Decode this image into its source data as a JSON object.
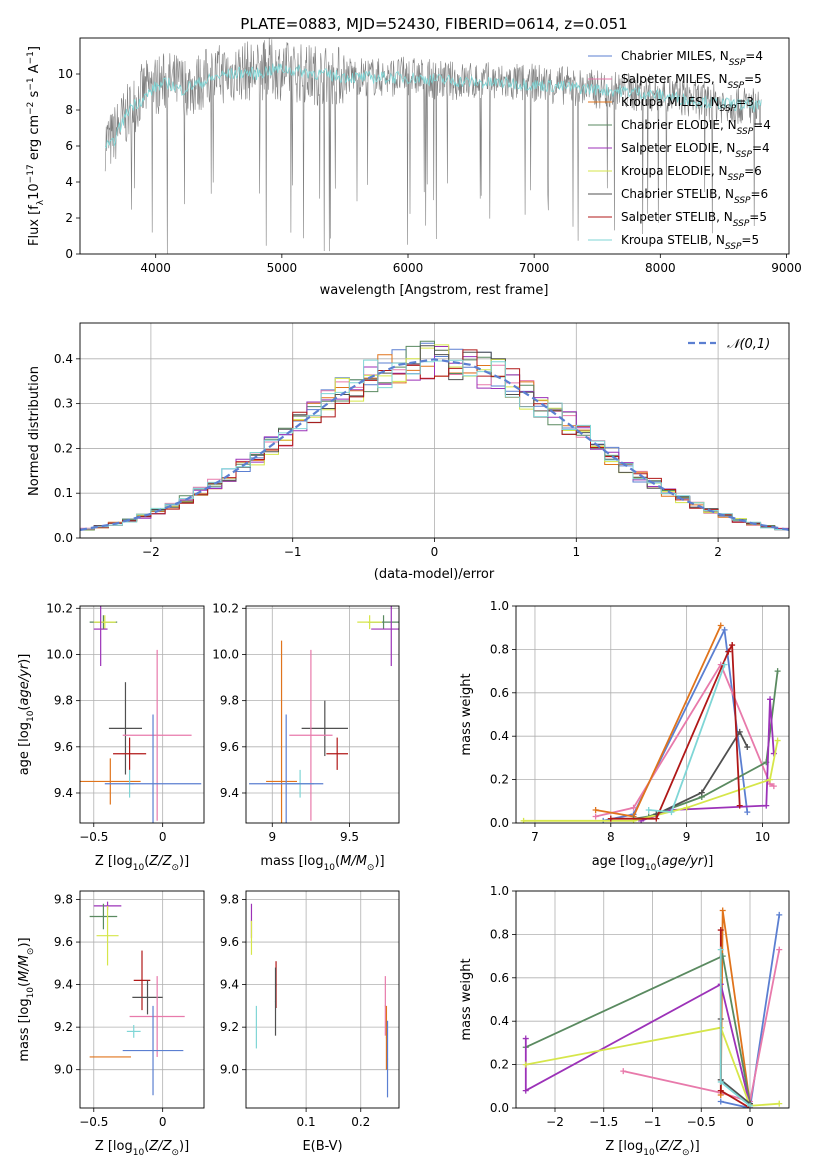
{
  "chart_data": [
    {
      "type": "line",
      "title": "PLATE=0883, MJD=52430, FIBERID=0614, z=0.051",
      "xlabel": "wavelength [Angstrom, rest frame]",
      "ylabel": "Flux [f_λ 10^-17 erg cm^-2 s^-1 A^-1]",
      "xlim": [
        3400,
        9020
      ],
      "ylim": [
        0,
        12
      ],
      "xticks": [
        4000,
        5000,
        6000,
        7000,
        8000,
        9000
      ],
      "yticks": [
        0,
        2,
        4,
        6,
        8,
        10
      ],
      "legend_position": "right",
      "legend": [
        {
          "label": "Chabrier MILES, N_SSP=4",
          "color": "#5b7fd1"
        },
        {
          "label": "Salpeter MILES, N_SSP=5",
          "color": "#e87aab"
        },
        {
          "label": "Kroupa MILES, N_SSP=3",
          "color": "#e0741c"
        },
        {
          "label": "Chabrier ELODIE, N_SSP=4",
          "color": "#5a8a60"
        },
        {
          "label": "Salpeter ELODIE, N_SSP=4",
          "color": "#9c32b8"
        },
        {
          "label": "Kroupa ELODIE, N_SSP=6",
          "color": "#d6e64a"
        },
        {
          "label": "Chabrier STELIB, N_SSP=6",
          "color": "#505050"
        },
        {
          "label": "Salpeter STELIB, N_SSP=5",
          "color": "#b01818"
        },
        {
          "label": "Kroupa STELIB, N_SSP=5",
          "color": "#7fd6d6"
        }
      ],
      "series": [
        {
          "name": "data",
          "color": "#808080",
          "x": [
            3650,
            3700,
            3800,
            3900,
            4000,
            4100,
            4200,
            4300,
            4400,
            4500,
            4600,
            4700,
            4800,
            4900,
            5000,
            5200,
            5400,
            5600,
            5800,
            6000,
            6200,
            6400,
            6600,
            6800,
            7000,
            7200,
            7400,
            7600,
            7800,
            8000,
            8200,
            8400,
            8600,
            8800
          ],
          "y": [
            6.3,
            7.0,
            8.0,
            9.0,
            9.4,
            9.6,
            9.4,
            9.3,
            9.8,
            10.0,
            10.0,
            10.2,
            10.1,
            10.3,
            10.2,
            10.0,
            9.9,
            9.9,
            9.8,
            9.9,
            9.7,
            9.6,
            9.6,
            9.5,
            9.5,
            9.4,
            9.2,
            9.1,
            9.0,
            8.9,
            8.7,
            8.4,
            8.3,
            8.2
          ]
        },
        {
          "name": "model",
          "color": "#7fd6d6",
          "x": [
            3650,
            3700,
            3800,
            3900,
            4000,
            4100,
            4200,
            4300,
            4400,
            4500,
            4600,
            4700,
            4800,
            4900,
            5000,
            5200,
            5400,
            5600,
            5800,
            6000,
            6200,
            6400,
            6600,
            6800,
            7000,
            7200,
            7400,
            7600,
            7800,
            8000,
            8200,
            8400,
            8600,
            8800
          ],
          "y": [
            6.0,
            6.8,
            8.2,
            8.6,
            9.3,
            9.5,
            9.1,
            9.4,
            9.6,
            9.9,
            10.0,
            10.1,
            10.0,
            10.2,
            10.3,
            10.1,
            9.9,
            9.8,
            9.8,
            9.8,
            9.7,
            9.6,
            9.5,
            9.5,
            9.4,
            9.3,
            9.2,
            9.1,
            9.0,
            8.8,
            8.6,
            8.4,
            8.3,
            8.2
          ]
        }
      ]
    },
    {
      "type": "line",
      "xlabel": "(data-model)/error",
      "ylabel": "Normed distribution",
      "xlim": [
        -2.5,
        2.5
      ],
      "ylim": [
        0,
        0.48
      ],
      "xticks": [
        -2,
        -1,
        0,
        1,
        2
      ],
      "yticks": [
        0.0,
        0.1,
        0.2,
        0.3,
        0.4
      ],
      "legend_position": "top-right",
      "legend": [
        {
          "label": "𝒩(0,1)",
          "color": "#5b7fd1"
        }
      ],
      "series": [
        {
          "name": "𝒩(0,1)",
          "color": "#5b7fd1",
          "x": [
            -2.5,
            -2.25,
            -2.0,
            -1.75,
            -1.5,
            -1.25,
            -1.0,
            -0.75,
            -0.5,
            -0.25,
            0.0,
            0.25,
            0.5,
            0.75,
            1.0,
            1.25,
            1.5,
            1.75,
            2.0,
            2.25,
            2.5
          ],
          "y": [
            0.018,
            0.032,
            0.054,
            0.086,
            0.13,
            0.183,
            0.242,
            0.301,
            0.352,
            0.387,
            0.399,
            0.387,
            0.352,
            0.301,
            0.242,
            0.183,
            0.13,
            0.086,
            0.054,
            0.032,
            0.018
          ]
        }
      ]
    },
    {
      "type": "scatter",
      "xlabel": "Z [log10(Z/Z_⊙)]",
      "ylabel": "age [log10(age/yr)]",
      "xlim": [
        -0.6,
        0.3
      ],
      "ylim": [
        9.27,
        10.21
      ],
      "xticks": [
        -0.5,
        0.0
      ],
      "yticks": [
        9.4,
        9.6,
        9.8,
        10.0,
        10.2
      ],
      "points": [
        {
          "x": -0.43,
          "y": 10.14,
          "color": "#5a8a60"
        },
        {
          "x": -0.42,
          "y": 10.14,
          "color": "#d6e64a"
        },
        {
          "x": -0.45,
          "y": 10.11,
          "color": "#9c32b8"
        },
        {
          "x": -0.27,
          "y": 9.68,
          "color": "#505050"
        },
        {
          "x": -0.04,
          "y": 9.65,
          "color": "#e87aab"
        },
        {
          "x": -0.24,
          "y": 9.57,
          "color": "#b01818"
        },
        {
          "x": -0.38,
          "y": 9.45,
          "color": "#e0741c"
        },
        {
          "x": -0.24,
          "y": 9.44,
          "color": "#7fd6d6"
        },
        {
          "x": -0.07,
          "y": 9.44,
          "color": "#5b7fd1"
        }
      ]
    },
    {
      "type": "scatter",
      "xlabel": "mass [log10(M/M_⊙)]",
      "xlim": [
        8.83,
        9.82
      ],
      "ylim": [
        9.27,
        10.21
      ],
      "xticks": [
        9.0,
        9.5
      ],
      "yticks": [
        9.4,
        9.6,
        9.8,
        10.0,
        10.2
      ],
      "points": [
        {
          "x": 9.72,
          "y": 10.14,
          "color": "#5a8a60"
        },
        {
          "x": 9.63,
          "y": 10.14,
          "color": "#d6e64a"
        },
        {
          "x": 9.77,
          "y": 10.11,
          "color": "#9c32b8"
        },
        {
          "x": 9.34,
          "y": 9.68,
          "color": "#505050"
        },
        {
          "x": 9.25,
          "y": 9.65,
          "color": "#e87aab"
        },
        {
          "x": 9.42,
          "y": 9.57,
          "color": "#b01818"
        },
        {
          "x": 9.06,
          "y": 9.45,
          "color": "#e0741c"
        },
        {
          "x": 9.18,
          "y": 9.44,
          "color": "#7fd6d6"
        },
        {
          "x": 9.09,
          "y": 9.44,
          "color": "#5b7fd1"
        }
      ]
    },
    {
      "type": "line",
      "xlabel": "age [log10(age/yr)]",
      "ylabel": "mass weight",
      "xlim": [
        6.75,
        10.35
      ],
      "ylim": [
        0,
        1
      ],
      "xticks": [
        7,
        8,
        9,
        10
      ],
      "yticks": [
        0.0,
        0.2,
        0.4,
        0.6,
        0.8,
        1.0
      ],
      "series": [
        {
          "name": "Chabrier MILES",
          "color": "#5b7fd1",
          "x": [
            7.9,
            8.3,
            9.5,
            9.8
          ],
          "y": [
            0.01,
            0.04,
            0.89,
            0.05
          ]
        },
        {
          "name": "Salpeter MILES",
          "color": "#e87aab",
          "x": [
            7.8,
            8.3,
            9.45,
            10.1,
            10.15
          ],
          "y": [
            0.03,
            0.07,
            0.73,
            0.18,
            0.17
          ]
        },
        {
          "name": "Kroupa MILES",
          "color": "#e0741c",
          "x": [
            7.8,
            8.3,
            9.45
          ],
          "y": [
            0.06,
            0.03,
            0.91
          ]
        },
        {
          "name": "Chabrier ELODIE",
          "color": "#5a8a60",
          "x": [
            8.3,
            8.5,
            9.2,
            10.05,
            10.2
          ],
          "y": [
            0.02,
            0.03,
            0.12,
            0.28,
            0.7
          ]
        },
        {
          "name": "Salpeter ELODIE",
          "color": "#9c32b8",
          "x": [
            8.4,
            8.8,
            10.05,
            10.1,
            10.15
          ],
          "y": [
            0.01,
            0.06,
            0.08,
            0.57,
            0.32
          ]
        },
        {
          "name": "Kroupa ELODIE",
          "color": "#d6e64a",
          "x": [
            6.85,
            8.3,
            9.0,
            10.1,
            10.2
          ],
          "y": [
            0.01,
            0.01,
            0.07,
            0.2,
            0.38
          ]
        },
        {
          "name": "Chabrier STELIB",
          "color": "#505050",
          "x": [
            8.6,
            9.2,
            9.7,
            9.8
          ],
          "y": [
            0.04,
            0.14,
            0.42,
            0.35
          ]
        },
        {
          "name": "Salpeter STELIB",
          "color": "#b01818",
          "x": [
            8.0,
            8.6,
            9.55,
            9.6,
            9.7
          ],
          "y": [
            0.02,
            0.02,
            0.79,
            0.82,
            0.08
          ]
        },
        {
          "name": "Kroupa STELIB",
          "color": "#7fd6d6",
          "x": [
            8.5,
            8.8,
            9.5
          ],
          "y": [
            0.06,
            0.05,
            0.73
          ]
        }
      ]
    },
    {
      "type": "scatter",
      "xlabel": "Z [log10(Z/Z_⊙)]",
      "ylabel": "mass [log10(M/M_⊙)]",
      "xlim": [
        -0.6,
        0.3
      ],
      "ylim": [
        8.82,
        9.84
      ],
      "xticks": [
        -0.5,
        0.0
      ],
      "yticks": [
        9.0,
        9.2,
        9.4,
        9.6,
        9.8
      ],
      "points": [
        {
          "x": -0.4,
          "y": 9.77,
          "color": "#9c32b8"
        },
        {
          "x": -0.43,
          "y": 9.72,
          "color": "#5a8a60"
        },
        {
          "x": -0.4,
          "y": 9.63,
          "color": "#d6e64a"
        },
        {
          "x": -0.15,
          "y": 9.42,
          "color": "#b01818"
        },
        {
          "x": -0.11,
          "y": 9.34,
          "color": "#505050"
        },
        {
          "x": -0.04,
          "y": 9.25,
          "color": "#e87aab"
        },
        {
          "x": -0.21,
          "y": 9.18,
          "color": "#7fd6d6"
        },
        {
          "x": -0.07,
          "y": 9.09,
          "color": "#5b7fd1"
        },
        {
          "x": -0.38,
          "y": 9.06,
          "color": "#e0741c"
        }
      ]
    },
    {
      "type": "scatter",
      "xlabel": "E(B-V)",
      "xlim": [
        -0.01,
        0.27
      ],
      "ylim": [
        8.82,
        9.84
      ],
      "xticks": [
        0.1,
        0.2
      ],
      "yticks": [
        9.0,
        9.2,
        9.4,
        9.6,
        9.8
      ],
      "points": [
        {
          "x": 0.0,
          "y": 9.7,
          "color": "#9c32b8"
        },
        {
          "x": 0.0,
          "y": 9.62,
          "color": "#d6e64a"
        },
        {
          "x": 0.045,
          "y": 9.4,
          "color": "#b01818"
        },
        {
          "x": 0.044,
          "y": 9.32,
          "color": "#505050"
        },
        {
          "x": 0.245,
          "y": 9.3,
          "color": "#e87aab"
        },
        {
          "x": 0.009,
          "y": 9.2,
          "color": "#7fd6d6"
        },
        {
          "x": 0.247,
          "y": 9.15,
          "color": "#e0741c"
        },
        {
          "x": 0.249,
          "y": 9.05,
          "color": "#5b7fd1"
        }
      ]
    },
    {
      "type": "line",
      "xlabel": "Z [log10(Z/Z_⊙)]",
      "ylabel": "mass weight",
      "xlim": [
        -2.4,
        0.4
      ],
      "ylim": [
        0,
        1
      ],
      "xticks": [
        -2.0,
        -1.5,
        -1.0,
        -0.5,
        0.0
      ],
      "yticks": [
        0.0,
        0.2,
        0.4,
        0.6,
        0.8,
        1.0
      ],
      "series": [
        {
          "name": "Chabrier MILES",
          "color": "#5b7fd1",
          "x": [
            -0.3,
            0.0,
            0.3
          ],
          "y": [
            0.03,
            0.0,
            0.89
          ]
        },
        {
          "name": "Salpeter MILES",
          "color": "#e87aab",
          "x": [
            -1.3,
            -0.3,
            0.0,
            0.3
          ],
          "y": [
            0.17,
            0.07,
            0.03,
            0.73
          ]
        },
        {
          "name": "Kroupa MILES",
          "color": "#e0741c",
          "x": [
            -0.3,
            -0.28,
            0.0
          ],
          "y": [
            0.06,
            0.91,
            0.02
          ]
        },
        {
          "name": "Chabrier ELODIE",
          "color": "#5a8a60",
          "x": [
            -2.3,
            -0.28,
            0.0
          ],
          "y": [
            0.28,
            0.7,
            0.02
          ]
        },
        {
          "name": "Salpeter ELODIE",
          "color": "#9c32b8",
          "x": [
            -2.3,
            -2.3,
            -0.3,
            0.0
          ],
          "y": [
            0.32,
            0.08,
            0.57,
            0.01
          ]
        },
        {
          "name": "Kroupa ELODIE",
          "color": "#d6e64a",
          "x": [
            -2.3,
            -0.3,
            0.0,
            0.3
          ],
          "y": [
            0.2,
            0.37,
            0.01,
            0.02
          ]
        },
        {
          "name": "Chabrier STELIB",
          "color": "#505050",
          "x": [
            -0.3,
            -0.3,
            0.0
          ],
          "y": [
            0.41,
            0.13,
            0.02
          ]
        },
        {
          "name": "Salpeter STELIB",
          "color": "#b01818",
          "x": [
            -0.3,
            -0.3,
            0.0
          ],
          "y": [
            0.82,
            0.08,
            0.0
          ]
        },
        {
          "name": "Kroupa STELIB",
          "color": "#7fd6d6",
          "x": [
            -0.3,
            -0.3,
            0.0
          ],
          "y": [
            0.73,
            0.12,
            0.01
          ]
        }
      ]
    }
  ]
}
